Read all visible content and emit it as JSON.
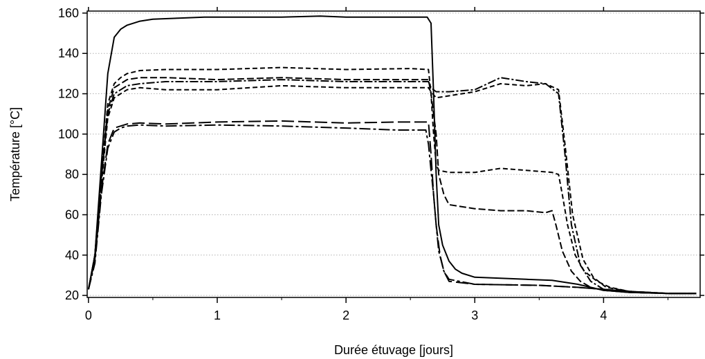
{
  "chart_data": {
    "type": "line",
    "xlabel": "Durée étuvage [jours]",
    "ylabel": "Température [°C]",
    "xlim": [
      -0.01,
      4.75
    ],
    "ylim": [
      19,
      161
    ],
    "xticks": [
      0,
      1,
      2,
      3,
      4
    ],
    "yticks": [
      20,
      40,
      60,
      80,
      100,
      120,
      140,
      160
    ],
    "grid": {
      "y": true,
      "x": false,
      "style": "dotted"
    },
    "legend": "none",
    "series": [
      {
        "style": "solid",
        "x": [
          0,
          0.05,
          0.1,
          0.15,
          0.2,
          0.25,
          0.3,
          0.4,
          0.5,
          0.7,
          0.9,
          1.0,
          1.2,
          1.5,
          1.8,
          2.0,
          2.2,
          2.4,
          2.55,
          2.63,
          2.66,
          2.68,
          2.7,
          2.72,
          2.75,
          2.8,
          2.85,
          2.9,
          3.0,
          3.2,
          3.4,
          3.6,
          3.7,
          3.8,
          3.9,
          4.0,
          4.2,
          4.5,
          4.72
        ],
        "y": [
          23,
          40,
          85,
          130,
          148,
          152,
          154,
          156,
          157,
          157.5,
          158,
          158,
          158,
          158,
          158.5,
          158,
          158,
          158,
          158,
          158,
          155,
          120,
          80,
          55,
          45,
          37,
          33,
          31,
          29,
          28.5,
          28,
          27.5,
          26.5,
          25.5,
          24,
          22.5,
          21.5,
          21,
          21
        ]
      },
      {
        "style": "dash-short",
        "x": [
          0,
          0.05,
          0.1,
          0.15,
          0.2,
          0.25,
          0.3,
          0.4,
          0.6,
          1.0,
          1.5,
          2.0,
          2.5,
          2.64,
          2.66,
          2.68,
          2.7,
          2.72,
          2.8,
          3.0,
          3.2,
          3.4,
          3.6,
          3.65,
          3.68,
          3.72,
          3.78,
          3.85,
          3.95,
          4.05,
          4.2,
          4.5,
          4.72
        ],
        "y": [
          23,
          40,
          80,
          115,
          125,
          128,
          130,
          131.5,
          132,
          132,
          133,
          132,
          132.5,
          132,
          120,
          100,
          85,
          82,
          81,
          81,
          83,
          82,
          81,
          80,
          70,
          55,
          40,
          32,
          27,
          24,
          22,
          21,
          21
        ]
      },
      {
        "style": "dash-dash",
        "x": [
          0,
          0.05,
          0.1,
          0.15,
          0.2,
          0.25,
          0.3,
          0.4,
          0.6,
          1.0,
          1.5,
          2.0,
          2.5,
          2.64,
          2.66,
          2.7,
          2.72,
          2.76,
          2.8,
          3.0,
          3.2,
          3.4,
          3.55,
          3.6,
          3.63,
          3.68,
          3.75,
          3.82,
          3.9,
          4.0,
          4.2,
          4.5,
          4.72
        ],
        "y": [
          23,
          40,
          80,
          112,
          123,
          125,
          127,
          128,
          128,
          127,
          128,
          127,
          127,
          127,
          120,
          100,
          80,
          70,
          65,
          63,
          62,
          62,
          61,
          62,
          55,
          42,
          32,
          27,
          24,
          22.5,
          21.5,
          21,
          21
        ]
      },
      {
        "style": "dash-dot",
        "x": [
          0,
          0.05,
          0.1,
          0.15,
          0.2,
          0.25,
          0.3,
          0.4,
          0.6,
          1.0,
          1.5,
          2.0,
          2.5,
          2.64,
          2.66,
          2.7,
          2.8,
          3.0,
          3.2,
          3.4,
          3.55,
          3.65,
          3.7,
          3.75,
          3.82,
          3.9,
          4.0,
          4.2,
          4.5,
          4.72
        ],
        "y": [
          23,
          40,
          78,
          110,
          120,
          122,
          124,
          125,
          126,
          126,
          127,
          126,
          126,
          126,
          123,
          121,
          121,
          122,
          128,
          126,
          125,
          120,
          90,
          55,
          35,
          27,
          23,
          21.5,
          21,
          21
        ]
      },
      {
        "style": "dash-short",
        "x": [
          0,
          0.05,
          0.1,
          0.15,
          0.2,
          0.25,
          0.3,
          0.4,
          0.6,
          1.0,
          1.5,
          2.0,
          2.5,
          2.64,
          2.66,
          2.7,
          2.8,
          3.0,
          3.2,
          3.4,
          3.55,
          3.65,
          3.7,
          3.76,
          3.84,
          3.92,
          4.02,
          4.2,
          4.5,
          4.72
        ],
        "y": [
          23,
          38,
          75,
          108,
          118,
          120,
          122,
          123,
          122,
          122,
          124,
          123,
          123,
          123,
          121,
          118,
          119,
          121,
          125,
          124,
          125,
          122,
          95,
          60,
          38,
          29,
          24,
          22,
          21,
          21
        ]
      },
      {
        "style": "dash-long",
        "x": [
          0,
          0.05,
          0.1,
          0.15,
          0.2,
          0.25,
          0.3,
          0.4,
          0.6,
          1.0,
          1.5,
          2.0,
          2.4,
          2.64,
          2.66,
          2.68,
          2.7,
          2.73,
          2.76,
          2.8,
          3.0,
          3.5,
          3.8,
          4.0,
          4.2,
          4.5,
          4.72
        ],
        "y": [
          23,
          38,
          72,
          95,
          103,
          104,
          105,
          105.5,
          105,
          106,
          106.5,
          105.5,
          106,
          106,
          90,
          70,
          55,
          40,
          32,
          27,
          25.5,
          25,
          24,
          23,
          22,
          21,
          21
        ]
      },
      {
        "style": "dash-dot-long",
        "x": [
          0,
          0.05,
          0.1,
          0.15,
          0.2,
          0.25,
          0.3,
          0.4,
          0.6,
          1.0,
          1.5,
          2.0,
          2.4,
          2.62,
          2.64,
          2.66,
          2.68,
          2.7,
          2.72,
          2.76,
          2.8,
          3.0,
          3.5,
          3.8,
          4.0,
          4.2,
          4.5,
          4.72
        ],
        "y": [
          23,
          36,
          70,
          93,
          101,
          103,
          104,
          104.5,
          104,
          104.5,
          104,
          103,
          102,
          102,
          95,
          82,
          70,
          55,
          42,
          32,
          28,
          25.5,
          25,
          24,
          23,
          22,
          21,
          21
        ]
      }
    ]
  }
}
